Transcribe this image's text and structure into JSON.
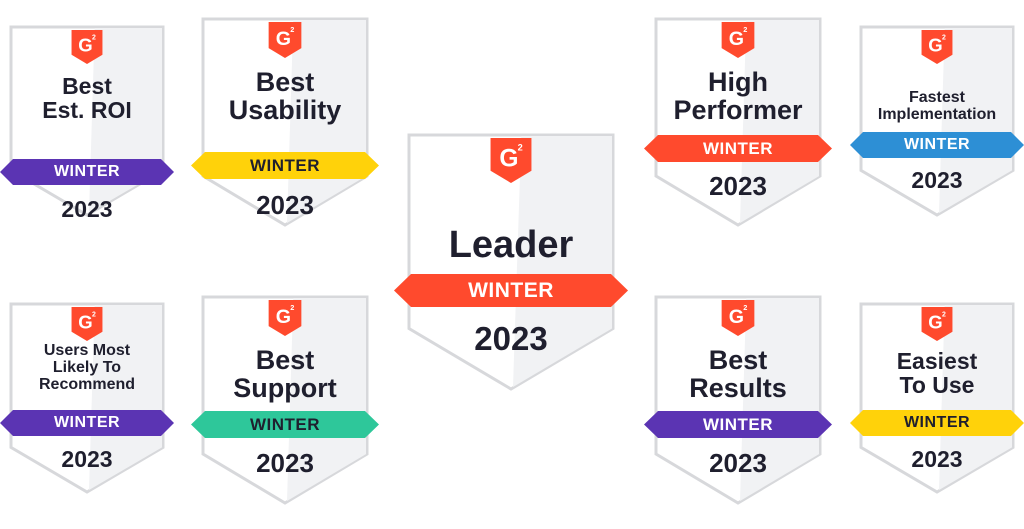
{
  "badges": [
    {
      "id": "best-est-roi",
      "title_lines": [
        "Best",
        "Est. ROI"
      ],
      "season": "WINTER",
      "year": "2023",
      "ribbon_color": "#5b34b3",
      "ribbon_text_color": "#ffffff"
    },
    {
      "id": "best-usability",
      "title_lines": [
        "Best",
        "Usability"
      ],
      "season": "WINTER",
      "year": "2023",
      "ribbon_color": "#ffd20a",
      "ribbon_text_color": "#1f1f2e"
    },
    {
      "id": "leader",
      "title_lines": [
        "Leader"
      ],
      "season": "WINTER",
      "year": "2023",
      "ribbon_color": "#ff4a2d",
      "ribbon_text_color": "#ffffff"
    },
    {
      "id": "high-performer",
      "title_lines": [
        "High",
        "Performer"
      ],
      "season": "WINTER",
      "year": "2023",
      "ribbon_color": "#ff4a2d",
      "ribbon_text_color": "#ffffff"
    },
    {
      "id": "fastest-implementation",
      "title_lines": [
        "Fastest",
        "Implementation"
      ],
      "season": "WINTER",
      "year": "2023",
      "ribbon_color": "#2d8fd5",
      "ribbon_text_color": "#ffffff"
    },
    {
      "id": "users-most-likely-to-recommend",
      "title_lines": [
        "Users Most",
        "Likely To",
        "Recommend"
      ],
      "season": "WINTER",
      "year": "2023",
      "ribbon_color": "#5b34b3",
      "ribbon_text_color": "#ffffff"
    },
    {
      "id": "best-support",
      "title_lines": [
        "Best",
        "Support"
      ],
      "season": "WINTER",
      "year": "2023",
      "ribbon_color": "#2ec79a",
      "ribbon_text_color": "#1f1f2e"
    },
    {
      "id": "best-results",
      "title_lines": [
        "Best",
        "Results"
      ],
      "season": "WINTER",
      "year": "2023",
      "ribbon_color": "#5b34b3",
      "ribbon_text_color": "#ffffff"
    },
    {
      "id": "easiest-to-use",
      "title_lines": [
        "Easiest",
        "To Use"
      ],
      "season": "WINTER",
      "year": "2023",
      "ribbon_color": "#ffd20a",
      "ribbon_text_color": "#1f1f2e"
    }
  ],
  "logo": {
    "icon": "g2-logo-icon",
    "color": "#ff4a2d",
    "text": "G",
    "superscript": "2"
  }
}
